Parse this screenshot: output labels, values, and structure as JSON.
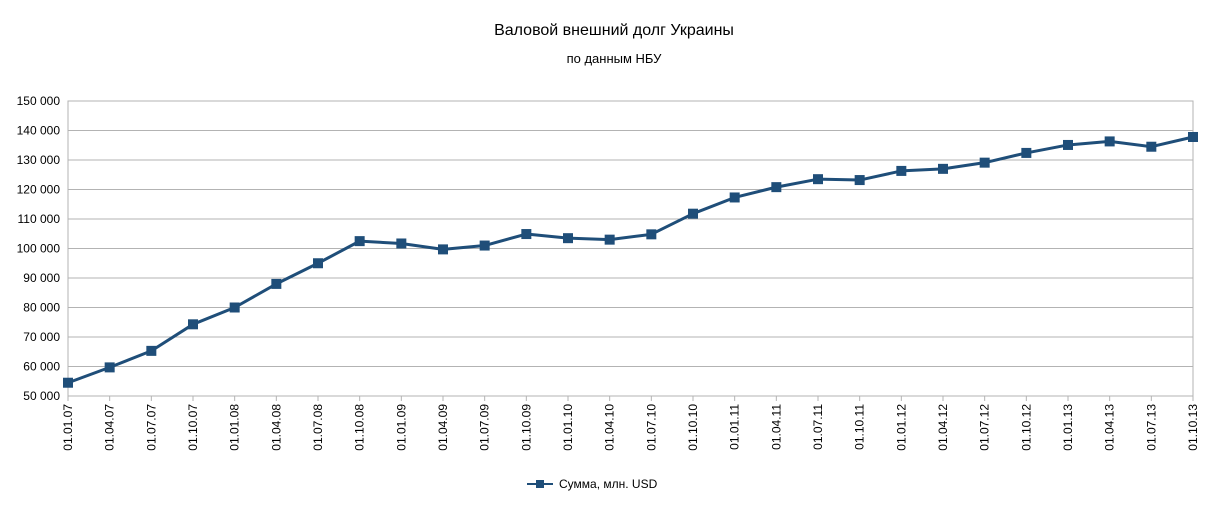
{
  "chart_data": {
    "type": "line",
    "title": "Валовой внешний долг Украины",
    "subtitle": "по данным НБУ",
    "xlabel": "",
    "ylabel": "",
    "ylim": [
      50000,
      150000
    ],
    "ytick_step": 10000,
    "ytick_labels": [
      "50 000",
      "60 000",
      "70 000",
      "80 000",
      "90 000",
      "100 000",
      "110 000",
      "120 000",
      "130 000",
      "140 000",
      "150 000"
    ],
    "grid": true,
    "legend_position": "bottom",
    "categories": [
      "01.01.07",
      "01.04.07",
      "01.07.07",
      "01.10.07",
      "01.01.08",
      "01.04.08",
      "01.07.08",
      "01.10.08",
      "01.01.09",
      "01.04.09",
      "01.07.09",
      "01.10.09",
      "01.01.10",
      "01.04.10",
      "01.07.10",
      "01.10.10",
      "01.01.11",
      "01.04.11",
      "01.07.11",
      "01.10.11",
      "01.01.12",
      "01.04.12",
      "01.07.12",
      "01.10.12",
      "01.01.13",
      "01.04.13",
      "01.07.13",
      "01.10.13"
    ],
    "series": [
      {
        "name": "Сумма, млн. USD",
        "color": "#1f4e79",
        "values": [
          54500,
          59700,
          65300,
          74300,
          80000,
          88000,
          95000,
          102500,
          101700,
          99700,
          101000,
          104900,
          103500,
          103000,
          104800,
          111800,
          117300,
          120800,
          123500,
          123200,
          126300,
          127000,
          129100,
          132400,
          135100,
          136300,
          134500,
          137800
        ]
      }
    ]
  }
}
